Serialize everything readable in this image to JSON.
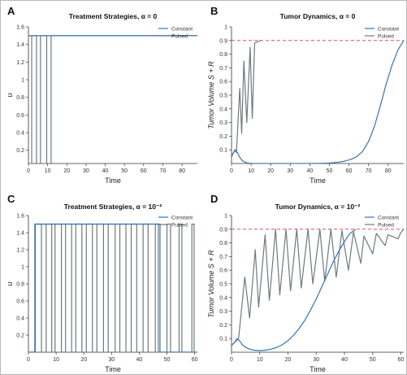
{
  "colors": {
    "constant": "#3674b5",
    "pulsed": "#6e7a7d",
    "threshold": "#d9534f",
    "axis": "#333333"
  },
  "chart_data": [
    {
      "panel": "A",
      "type": "line",
      "title": "Treatment Strategies, α = 0",
      "xlabel": "Time",
      "ylabel": "u",
      "xlim": [
        0,
        88
      ],
      "ylim": [
        0.05,
        1.6
      ],
      "xticks": [
        0,
        10,
        20,
        30,
        40,
        50,
        60,
        70,
        80
      ],
      "yticks": [
        0.2,
        0.4,
        0.6,
        0.8,
        1.0,
        1.2,
        1.4,
        1.6
      ],
      "ytick_labels": [
        "0.2",
        "0.4",
        "0.6",
        "0.8",
        "1",
        "1.2",
        "1.4",
        "1.6"
      ],
      "legend": {
        "position": "top-right",
        "entries": [
          "Constant",
          "Pulsed"
        ]
      },
      "series": [
        {
          "name": "Constant",
          "x": [
            0,
            88
          ],
          "y": [
            1.5,
            1.5
          ]
        },
        {
          "name": "Pulsed",
          "x": [
            0,
            1.7,
            1.7,
            4.2,
            4.2,
            6.3,
            6.3,
            9.5,
            9.5,
            11.8,
            11.8,
            88
          ],
          "y": [
            0,
            0,
            1.5,
            1.5,
            0,
            0,
            1.5,
            1.5,
            0,
            0,
            1.5,
            1.5
          ]
        }
      ]
    },
    {
      "panel": "B",
      "type": "line",
      "title": "Tumor Dynamics, α = 0",
      "xlabel": "Time",
      "ylabel": "Tumor Volume S + R",
      "xlim": [
        0,
        88
      ],
      "ylim": [
        0,
        1
      ],
      "xticks": [
        0,
        10,
        20,
        30,
        40,
        50,
        60,
        70,
        80
      ],
      "yticks": [
        0.1,
        0.2,
        0.3,
        0.4,
        0.5,
        0.6,
        0.7,
        0.8,
        0.9,
        1.0
      ],
      "ytick_labels": [
        "0.1",
        "0.2",
        "0.3",
        "0.4",
        "0.5",
        "0.6",
        "0.7",
        "0.8",
        "0.9",
        "1"
      ],
      "threshold": 0.9,
      "legend": {
        "position": "top-right",
        "entries": [
          "Constant",
          "Pulsed"
        ]
      },
      "series": [
        {
          "name": "Constant",
          "x": [
            0,
            1,
            2,
            3,
            4,
            5,
            6,
            8,
            10,
            20,
            30,
            40,
            45,
            50,
            55,
            58,
            61,
            64,
            67,
            70,
            73,
            76,
            79,
            82,
            85,
            88
          ],
          "y": [
            0.05,
            0.08,
            0.1,
            0.08,
            0.05,
            0.03,
            0.015,
            0.004,
            0.001,
            0.0003,
            0.0003,
            0.0005,
            0.001,
            0.003,
            0.01,
            0.018,
            0.03,
            0.05,
            0.09,
            0.16,
            0.27,
            0.42,
            0.58,
            0.72,
            0.83,
            0.9
          ]
        },
        {
          "name": "Pulsed",
          "x": [
            0,
            1.7,
            2.5,
            4.2,
            5.2,
            6.3,
            7.8,
            9.5,
            10.6,
            11.8,
            13,
            15
          ],
          "y": [
            0.05,
            0.1,
            0.08,
            0.55,
            0.22,
            0.75,
            0.3,
            0.85,
            0.33,
            0.88,
            0.89,
            0.9
          ]
        }
      ]
    },
    {
      "panel": "C",
      "type": "line",
      "title": "Treatment Strategies, α = 10⁻²",
      "xlabel": "Time",
      "ylabel": "u",
      "xlim": [
        0,
        61
      ],
      "ylim": [
        0,
        1.6
      ],
      "xticks": [
        0,
        10,
        20,
        30,
        40,
        50,
        60
      ],
      "yticks": [
        0.2,
        0.4,
        0.6,
        0.8,
        1.0,
        1.2,
        1.4,
        1.6
      ],
      "ytick_labels": [
        "0.2",
        "0.4",
        "0.6",
        "0.8",
        "1",
        "1.2",
        "1.4",
        "1.6"
      ],
      "legend": {
        "position": "top-right",
        "entries": [
          "Constant",
          "Pulsed"
        ]
      },
      "series": [
        {
          "name": "Constant",
          "x": [
            0,
            2.3,
            2.3,
            47.5,
            47.5,
            61
          ],
          "y": [
            0,
            0,
            1.5,
            1.5,
            0,
            0
          ]
        },
        {
          "name": "Pulsed",
          "pulses": [
            [
              2.5,
              4.7
            ],
            [
              6.4,
              8.4
            ],
            [
              9.6,
              11.9
            ],
            [
              13.4,
              15.6
            ],
            [
              17.1,
              19.3
            ],
            [
              20.9,
              23.1
            ],
            [
              24.7,
              27.1
            ],
            [
              28.8,
              31.3
            ],
            [
              33,
              35.2
            ],
            [
              37.1,
              39.1
            ],
            [
              41.4,
              43.2
            ],
            [
              45.8,
              46.9
            ],
            [
              50,
              51.3
            ],
            [
              54.4,
              55.4
            ],
            [
              59,
              59.8
            ]
          ],
          "on_value": 1.5
        }
      ]
    },
    {
      "panel": "D",
      "type": "line",
      "title": "Tumor Dynamics, α = 10⁻²",
      "xlabel": "Time",
      "ylabel": "Tumor Volume S + R",
      "xlim": [
        0,
        61
      ],
      "ylim": [
        0,
        1
      ],
      "xticks": [
        0,
        10,
        20,
        30,
        40,
        50,
        60
      ],
      "yticks": [
        0.1,
        0.2,
        0.3,
        0.4,
        0.5,
        0.6,
        0.7,
        0.8,
        0.9,
        1.0
      ],
      "ytick_labels": [
        "0.1",
        "0.2",
        "0.3",
        "0.4",
        "0.5",
        "0.6",
        "0.7",
        "0.8",
        "0.9",
        "1"
      ],
      "threshold": 0.9,
      "legend": {
        "position": "top-right",
        "entries": [
          "Constant",
          "Pulsed"
        ]
      },
      "series": [
        {
          "name": "Constant",
          "x": [
            0,
            1,
            2,
            3,
            4,
            6,
            8,
            10,
            12,
            14,
            16,
            18,
            20,
            22,
            24,
            26,
            28,
            30,
            32,
            34,
            36,
            38,
            40,
            42,
            44
          ],
          "y": [
            0.05,
            0.07,
            0.1,
            0.08,
            0.05,
            0.025,
            0.015,
            0.012,
            0.015,
            0.022,
            0.035,
            0.055,
            0.085,
            0.125,
            0.175,
            0.235,
            0.31,
            0.39,
            0.48,
            0.57,
            0.66,
            0.74,
            0.81,
            0.87,
            0.9
          ]
        },
        {
          "name": "Pulsed",
          "x": [
            0,
            2.5,
            4.7,
            6.4,
            8.4,
            9.6,
            11.9,
            13.4,
            15.6,
            17.1,
            19.3,
            20.9,
            23.1,
            24.7,
            27.1,
            28.8,
            31.3,
            33,
            35.2,
            37.1,
            39.1,
            41.4,
            43.2,
            45.8,
            46.9,
            50,
            51.3,
            54.4,
            55.4,
            59,
            59.8,
            61
          ],
          "y": [
            0.05,
            0.1,
            0.55,
            0.25,
            0.75,
            0.33,
            0.86,
            0.38,
            0.9,
            0.42,
            0.9,
            0.45,
            0.9,
            0.47,
            0.9,
            0.5,
            0.9,
            0.52,
            0.9,
            0.55,
            0.89,
            0.6,
            0.88,
            0.65,
            0.85,
            0.72,
            0.87,
            0.78,
            0.86,
            0.83,
            0.87,
            0.9
          ]
        }
      ]
    }
  ]
}
